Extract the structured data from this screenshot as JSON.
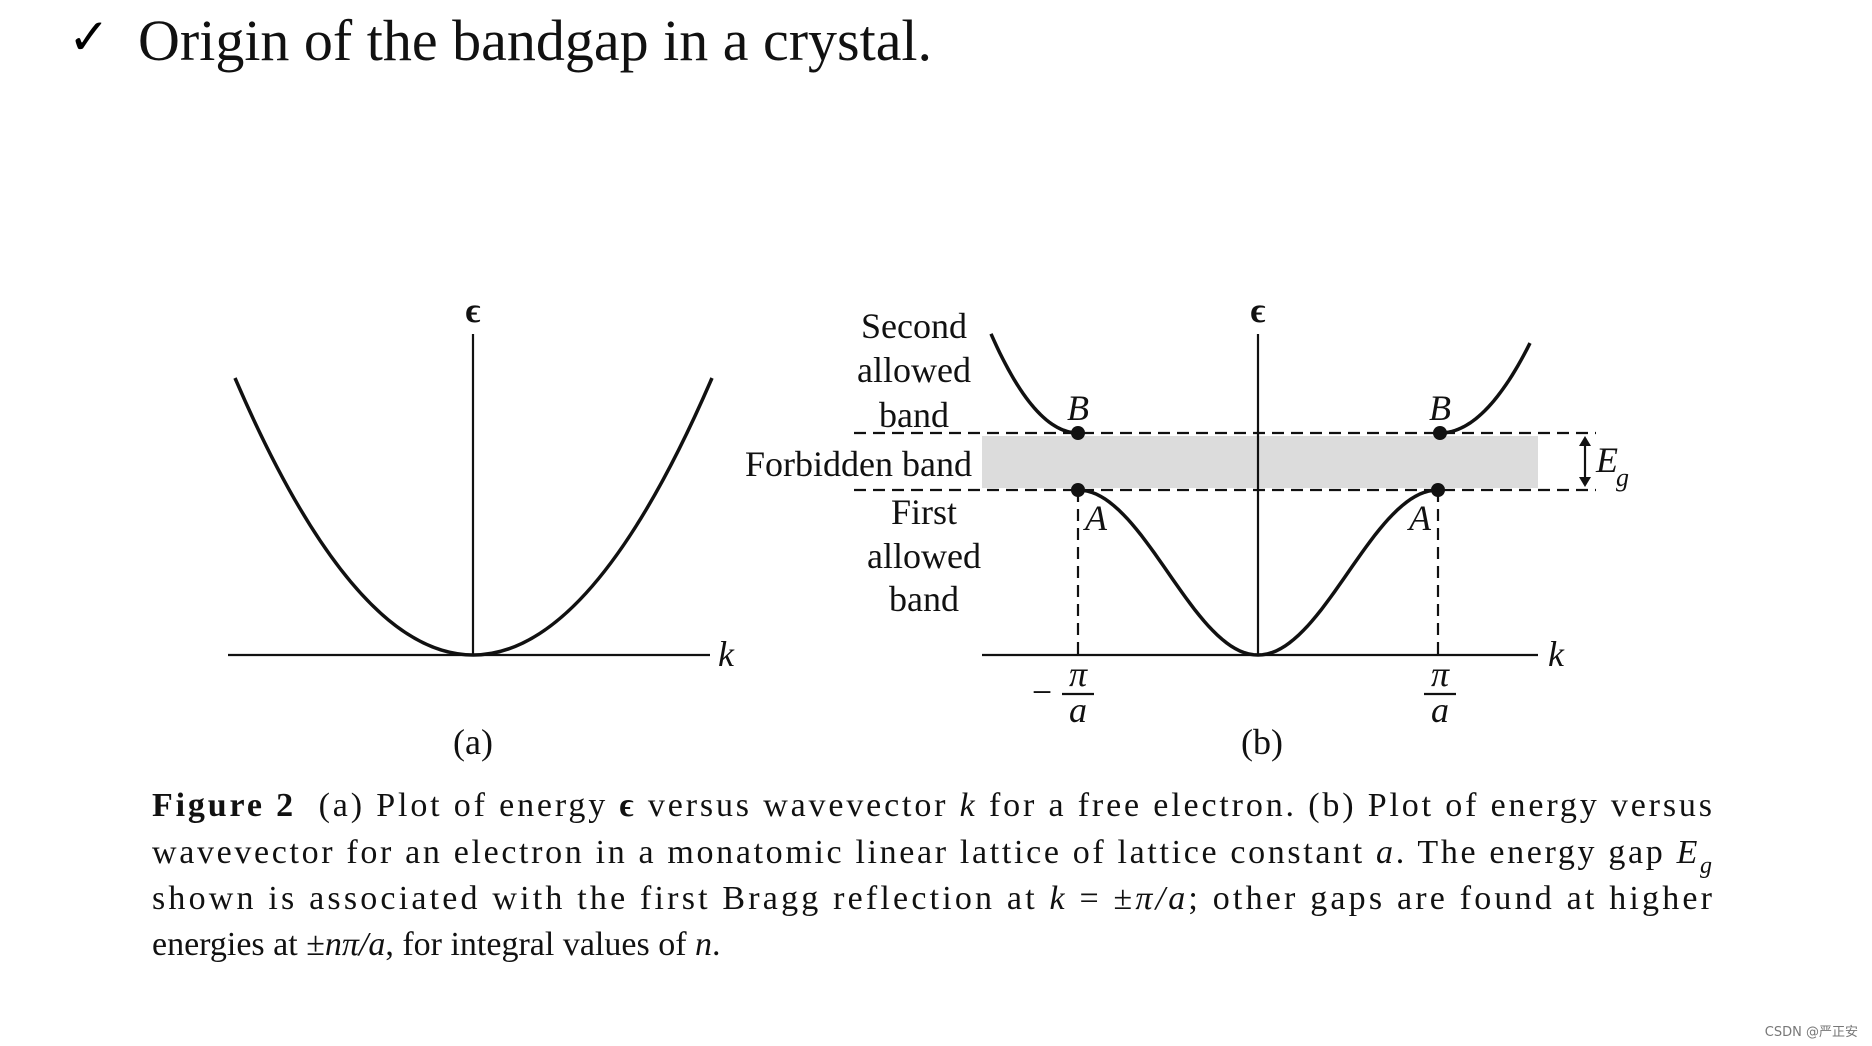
{
  "header": {
    "check": "✓",
    "title": "Origin of the bandgap in a crystal."
  },
  "figure": {
    "panel_a": {
      "y_label": "ϵ",
      "x_label": "k",
      "label": "(a)"
    },
    "panel_b": {
      "y_label": "ϵ",
      "x_label": "k",
      "label": "(b)",
      "second_band": [
        "Second",
        "allowed",
        "band"
      ],
      "forbidden_band": "Forbidden band",
      "first_band": [
        "First",
        "allowed",
        "band"
      ],
      "points": [
        "B",
        "B",
        "A",
        "A"
      ],
      "gap": {
        "symbol": "E",
        "subscript": "g"
      },
      "k_left": {
        "sign": "−",
        "numerator": "π",
        "denominator": "a"
      },
      "k_right": {
        "numerator": "π",
        "denominator": "a"
      }
    },
    "caption": [
      [
        {
          "text": "Figure 2",
          "style": "bold"
        },
        {
          "text": "  (a) Plot of energy "
        },
        {
          "text": "ϵ",
          "style": "bold"
        },
        {
          "text": " versus wavevector "
        },
        {
          "text": "k",
          "style": "italic"
        },
        {
          "text": " for a free electron. (b) Plot of energy versus"
        }
      ],
      [
        {
          "text": "wavevector for an electron in a monatomic linear lattice of lattice constant "
        },
        {
          "text": "a",
          "style": "italic"
        },
        {
          "text": ". The energy gap "
        },
        {
          "text": "E",
          "style": "italic"
        },
        {
          "text": "g",
          "style": "sub"
        }
      ],
      [
        {
          "text": "shown is associated with the first Bragg reflection at "
        },
        {
          "text": "k",
          "style": "italic"
        },
        {
          "text": " = ±"
        },
        {
          "text": "π/a",
          "style": "italic"
        },
        {
          "text": "; other gaps are found at higher"
        }
      ],
      [
        {
          "text": "energies at ±"
        },
        {
          "text": "nπ/a",
          "style": "italic"
        },
        {
          "text": ", for integral values of "
        },
        {
          "text": "n",
          "style": "italic"
        },
        {
          "text": "."
        }
      ]
    ]
  },
  "watermark": "CSDN @严正安"
}
